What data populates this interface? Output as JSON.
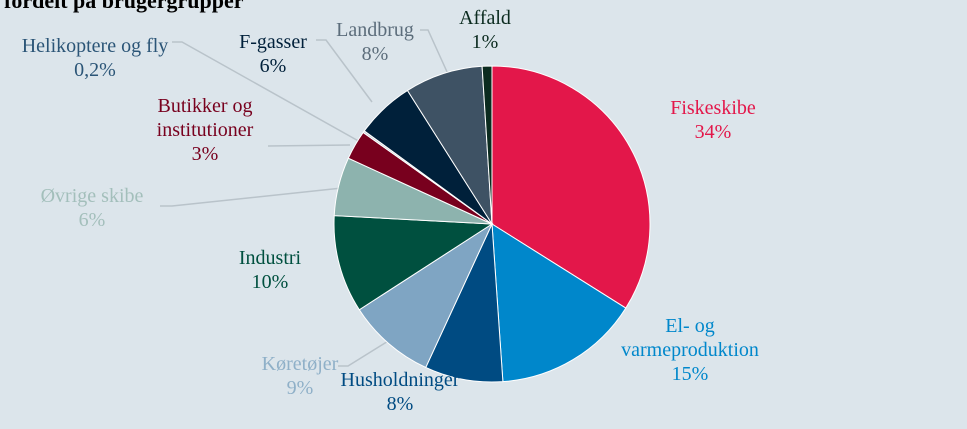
{
  "chart_data": {
    "type": "pie",
    "title": "fordelt på brugergrupper",
    "categories": [
      "Fiskeskibe",
      "El- og varmeproduktion",
      "Husholdninger",
      "Køretøjer",
      "Industri",
      "Øvrige skibe",
      "Butikker og institutioner",
      "Helikoptere og fly",
      "F-gasser",
      "Landbrug",
      "Affald"
    ],
    "values": [
      34,
      15,
      8,
      9,
      10,
      6,
      3,
      0.2,
      6,
      8,
      1
    ],
    "value_labels": [
      "34%",
      "15%",
      "8%",
      "9%",
      "10%",
      "6%",
      "3%",
      "0,2%",
      "6%",
      "8%",
      "1%"
    ],
    "colors": [
      "#e3174a",
      "#0087cb",
      "#004b82",
      "#7fa5c3",
      "#00503f",
      "#8db3ae",
      "#78001e",
      "#c9d3da",
      "#00203a",
      "#3e5264",
      "#0b2b1f"
    ],
    "label_colors": [
      "#e3174a",
      "#0087cb",
      "#004b82",
      "#8fb0c8",
      "#00503f",
      "#a3bfbb",
      "#78001e",
      "#2b5577",
      "#00203a",
      "#5c6d7b",
      "#0b2b1f"
    ]
  }
}
